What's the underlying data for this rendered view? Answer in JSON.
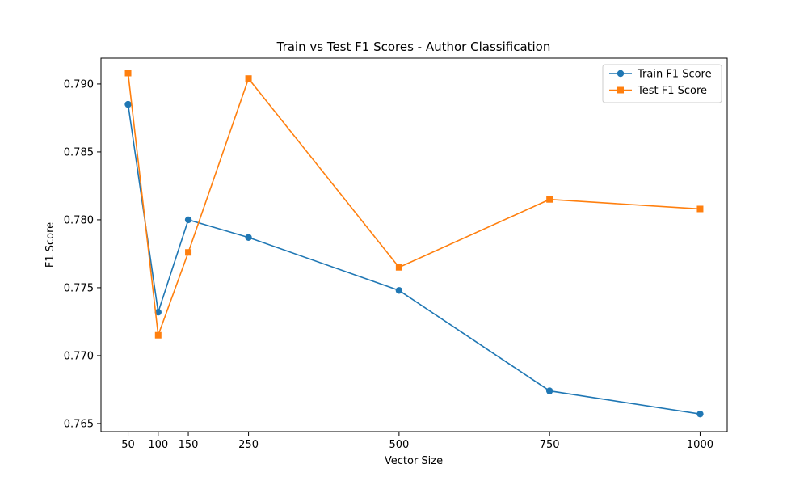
{
  "chart_data": {
    "type": "line",
    "title": "Train vs Test F1 Scores - Author Classification",
    "xlabel": "Vector Size",
    "ylabel": "F1 Score",
    "x": [
      50,
      100,
      150,
      250,
      500,
      750,
      1000
    ],
    "xticks": [
      50,
      100,
      150,
      250,
      500,
      750,
      1000
    ],
    "yticks": [
      0.765,
      0.77,
      0.775,
      0.78,
      0.785,
      0.79
    ],
    "xlim": [
      5,
      1045
    ],
    "ylim": [
      0.7644,
      0.7919
    ],
    "grid": false,
    "legend_position": "top-right",
    "series": [
      {
        "name": "Train F1 Score",
        "color": "#1f77b4",
        "marker": "circle",
        "values": [
          0.7885,
          0.7732,
          0.78,
          0.7787,
          0.7748,
          0.7674,
          0.7657
        ]
      },
      {
        "name": "Test F1 Score",
        "color": "#ff7f0e",
        "marker": "square",
        "values": [
          0.7908,
          0.7715,
          0.7776,
          0.7904,
          0.7765,
          0.7815,
          0.7808
        ]
      }
    ]
  }
}
